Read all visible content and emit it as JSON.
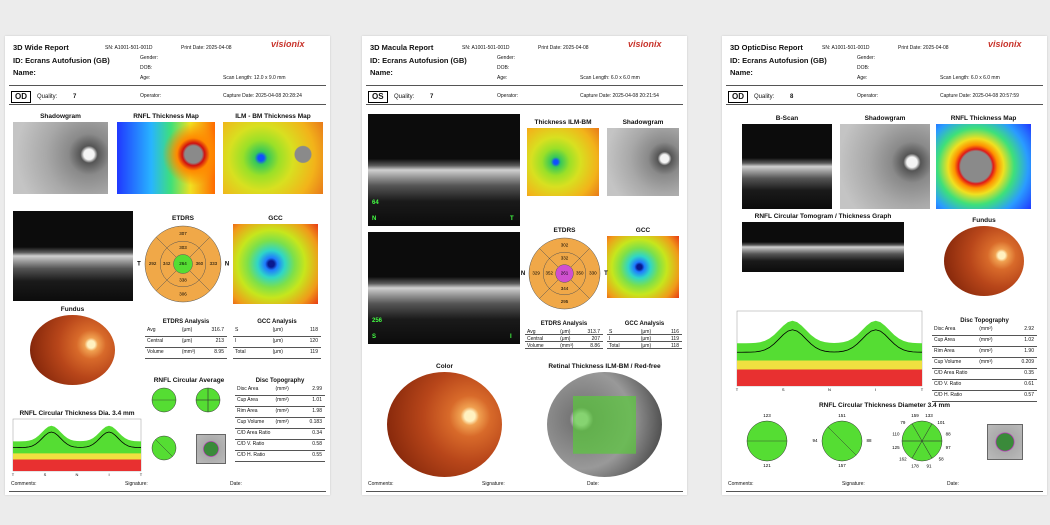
{
  "reports": [
    {
      "title": "3D Wide Report",
      "sn": "SN: A1001-501-001D",
      "print_date": "Print Date: 2025-04-08",
      "logo": "visionix",
      "id": "ID: Ecrans Autofusion (GB)",
      "name": "Name:",
      "gender": "Gender:",
      "dob": "DOB:",
      "age": "Age:",
      "scan_length": "Scan Length: 12.0 x 9.0 mm",
      "eye": "OD",
      "quality_label": "Quality:",
      "quality": "7",
      "operator": "Operator:",
      "capture_date": "Capture Date: 2025-04-08 20:28:24",
      "panels": [
        "Shadowgram",
        "RNFL Thickness Map",
        "ILM - BM Thickness Map",
        "ETDRS",
        "GCC",
        "Fundus",
        "RNFL Circular Average",
        "RNFL Circular Thickness Dia. 3.4 mm"
      ],
      "etdrs": {
        "side_labels": [
          "T",
          "N"
        ],
        "values": [
          "307",
          "303",
          "292",
          "342",
          "264",
          "360",
          "333",
          "338",
          "306"
        ]
      },
      "graph_x_labels": [
        "T",
        "S",
        "N",
        "I",
        "T"
      ],
      "tables": [
        {
          "title": "ETDRS Analysis",
          "rows": [
            [
              "Avg",
              "(μm)",
              "316.7"
            ],
            [
              "Central",
              "(μm)",
              "213"
            ],
            [
              "Volume",
              "(mm³)",
              "8.95"
            ]
          ]
        },
        {
          "title": "GCC Analysis",
          "rows": [
            [
              "S",
              "(μm)",
              "118"
            ],
            [
              "I",
              "(μm)",
              "120"
            ],
            [
              "Total",
              "(μm)",
              "119"
            ]
          ]
        },
        {
          "title": "Disc Topography",
          "rows": [
            [
              "Disc Area",
              "(mm²)",
              "2.99"
            ],
            [
              "Cup Area",
              "(mm²)",
              "1.01"
            ],
            [
              "Rim Area",
              "(mm²)",
              "1.98"
            ],
            [
              "Cup Volume",
              "(mm³)",
              "0.183"
            ],
            [
              "C/D Area Ratio",
              "0.34"
            ],
            [
              "C/D V. Ratio",
              "0.58"
            ],
            [
              "C/D H. Ratio",
              "0.55"
            ]
          ]
        }
      ],
      "footer": [
        "Comments:",
        "Signature:",
        "Date:"
      ]
    },
    {
      "title": "3D Macula Report",
      "sn": "SN: A1001-501-001D",
      "print_date": "Print Date: 2025-04-08",
      "logo": "visionix",
      "id": "ID: Ecrans Autofusion (GB)",
      "name": "Name:",
      "gender": "Gender:",
      "dob": "DOB:",
      "age": "Age:",
      "scan_length": "Scan Length: 6.0 x 6.0 mm",
      "eye": "OS",
      "quality_label": "Quality:",
      "quality": "7",
      "operator": "Operator:",
      "capture_date": "Capture Date: 2025-04-08 20:21:54",
      "panels": [
        "Thickness ILM-BM",
        "Shadowgram",
        "ETDRS",
        "GCC",
        "Color",
        "Retinal Thickness ILM-BM / Red-free"
      ],
      "oct_labels": [
        [
          "64",
          "N",
          "T"
        ],
        [
          "256",
          "S",
          "I"
        ]
      ],
      "etdrs": {
        "side_labels": [
          "N",
          "T"
        ],
        "values": [
          "302",
          "332",
          "329",
          "352",
          "261",
          "350",
          "330",
          "344",
          "295"
        ]
      },
      "tables": [
        {
          "title": "ETDRS Analysis",
          "rows": [
            [
              "Avg",
              "(μm)",
              "313.7"
            ],
            [
              "Central",
              "(μm)",
              "207"
            ],
            [
              "Volume",
              "(mm³)",
              "8.86"
            ]
          ]
        },
        {
          "title": "GCC Analysis",
          "rows": [
            [
              "S",
              "(μm)",
              "116"
            ],
            [
              "I",
              "(μm)",
              "119"
            ],
            [
              "Total",
              "(μm)",
              "118"
            ]
          ]
        }
      ],
      "footer": [
        "Comments:",
        "Signature:",
        "Date:"
      ]
    },
    {
      "title": "3D OpticDisc Report",
      "sn": "SN: A1001-501-001D",
      "print_date": "Print Date: 2025-04-08",
      "logo": "visionix",
      "id": "ID: Ecrans Autofusion (GB)",
      "name": "Name:",
      "gender": "Gender:",
      "dob": "DOB:",
      "age": "Age:",
      "scan_length": "Scan Length: 6.0 x 6.0 mm",
      "eye": "OD",
      "quality_label": "Quality:",
      "quality": "8",
      "operator": "Operator:",
      "capture_date": "Capture Date: 2025-04-08 20:57:59",
      "panels": [
        "B-Scan",
        "Shadowgram",
        "RNFL Thickness Map",
        "RNFL Circular Tomogram / Thickness Graph",
        "Fundus",
        "RNFL Circular Thickness Diameter 3.4 mm"
      ],
      "graph_x_labels": [
        "T",
        "S",
        "N",
        "I",
        "T"
      ],
      "circle_values": [
        [
          "123",
          "121"
        ],
        [
          "151",
          "94",
          "88",
          "157"
        ],
        [
          "159",
          "133",
          "101",
          "88",
          "97",
          "58",
          "91",
          "178",
          "162",
          "125",
          "110",
          "79"
        ]
      ],
      "tables": [
        {
          "title": "Disc Topography",
          "rows": [
            [
              "Disc Area",
              "(mm²)",
              "2.92"
            ],
            [
              "Cup Area",
              "(mm²)",
              "1.02"
            ],
            [
              "Rim Area",
              "(mm²)",
              "1.90"
            ],
            [
              "Cup Volume",
              "(mm³)",
              "0.209"
            ],
            [
              "C/D Area Ratio",
              "0.35"
            ],
            [
              "C/D V. Ratio",
              "0.61"
            ],
            [
              "C/D H. Ratio",
              "0.57"
            ]
          ]
        }
      ],
      "footer": [
        "Comments:",
        "Signature:",
        "Date:"
      ]
    }
  ]
}
